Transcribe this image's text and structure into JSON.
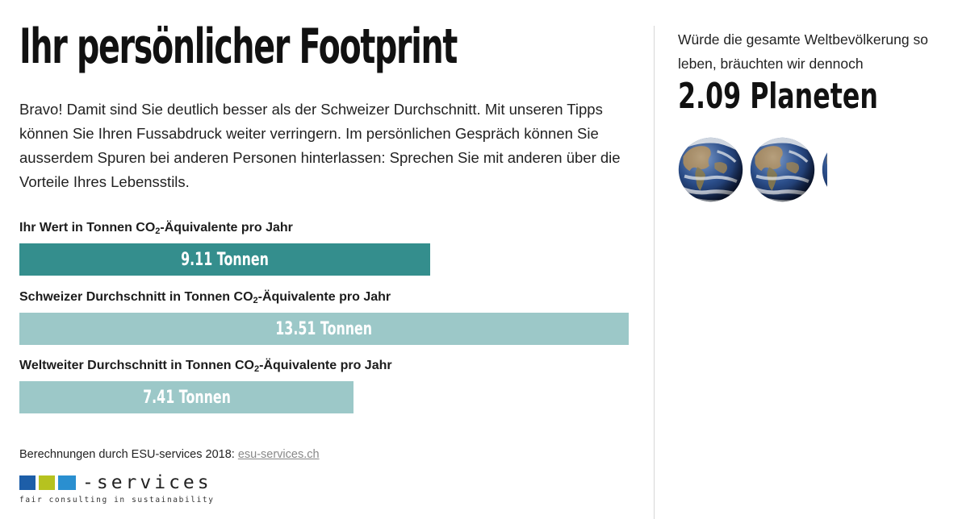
{
  "title": "Ihr persönlicher Footprint",
  "intro": "Bravo! Damit sind Sie deutlich besser als der Schweizer Durchschnitt. Mit unseren Tipps können Sie Ihren Fussabdruck weiter verringern. Im persönlichen Gespräch können Sie ausserdem Spuren bei anderen Personen hinterlassen: Sprechen Sie mit anderen über die Vorteile Ihres Lebensstils.",
  "metrics": [
    {
      "label_pre": "Ihr Wert in Tonnen CO",
      "label_sub": "2",
      "label_post": "-Äquivalente pro Jahr",
      "tonnes": 9.11,
      "value_text": "9.11 Tonnen",
      "color": "#348e8d"
    },
    {
      "label_pre": "Schweizer Durchschnitt in Tonnen CO",
      "label_sub": "2",
      "label_post": "-Äquivalente pro Jahr",
      "tonnes": 13.51,
      "value_text": "13.51 Tonnen",
      "color": "#9cc8c8"
    },
    {
      "label_pre": "Weltweiter Durchschnitt in Tonnen CO",
      "label_sub": "2",
      "label_post": "-Äquivalente pro Jahr",
      "tonnes": 7.41,
      "value_text": "7.41 Tonnen",
      "color": "#9cc8c8"
    }
  ],
  "credit": {
    "text": "Berechnungen durch ESU-services 2018: ",
    "link_text": "esu-services.ch"
  },
  "logo": {
    "word": "-services",
    "tagline": "fair consulting in sustainability",
    "colors": [
      "#1d5ea8",
      "#b6c21f",
      "#2a8fd0"
    ]
  },
  "side": {
    "text": "Würde die gesamte Weltbevölkerung so leben, bräuchten wir dennoch",
    "planets": "2.09 Planeten",
    "planet_count": 2.09
  }
}
